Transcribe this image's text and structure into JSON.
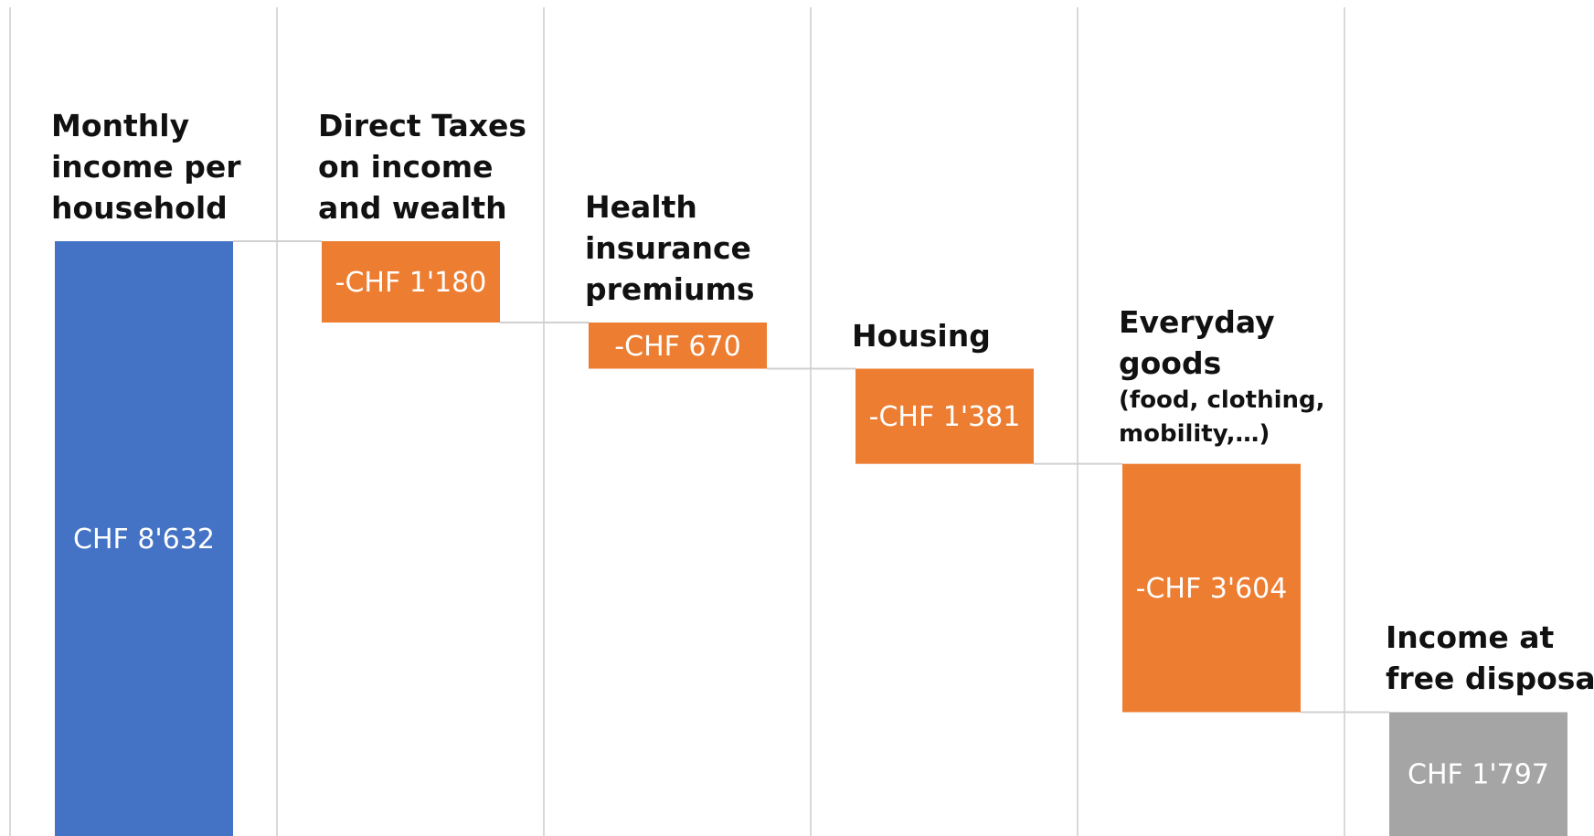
{
  "chart_data": {
    "type": "waterfall",
    "categories": [
      "Monthly income per household",
      "Direct Taxes on income and wealth",
      "Health insurance premiums",
      "Housing",
      "Everyday goods",
      "Income at free disposal"
    ],
    "category_details": [
      null,
      null,
      null,
      null,
      "(food, clothing, mobility,…)",
      null
    ],
    "values": [
      8632,
      -1180,
      -670,
      -1381,
      -3604,
      1797
    ],
    "value_labels": [
      "CHF 8'632",
      "-CHF 1'180",
      "-CHF 670",
      "-CHF 1'381",
      "-CHF 3'604",
      "CHF 1'797"
    ],
    "totals": [
      true,
      false,
      false,
      false,
      false,
      true
    ],
    "colors": [
      "#4472c4",
      "#ed7d31",
      "#ed7d31",
      "#ed7d31",
      "#ed7d31",
      "#a5a5a5"
    ],
    "ylim": [
      0,
      12000
    ],
    "grid": true
  }
}
